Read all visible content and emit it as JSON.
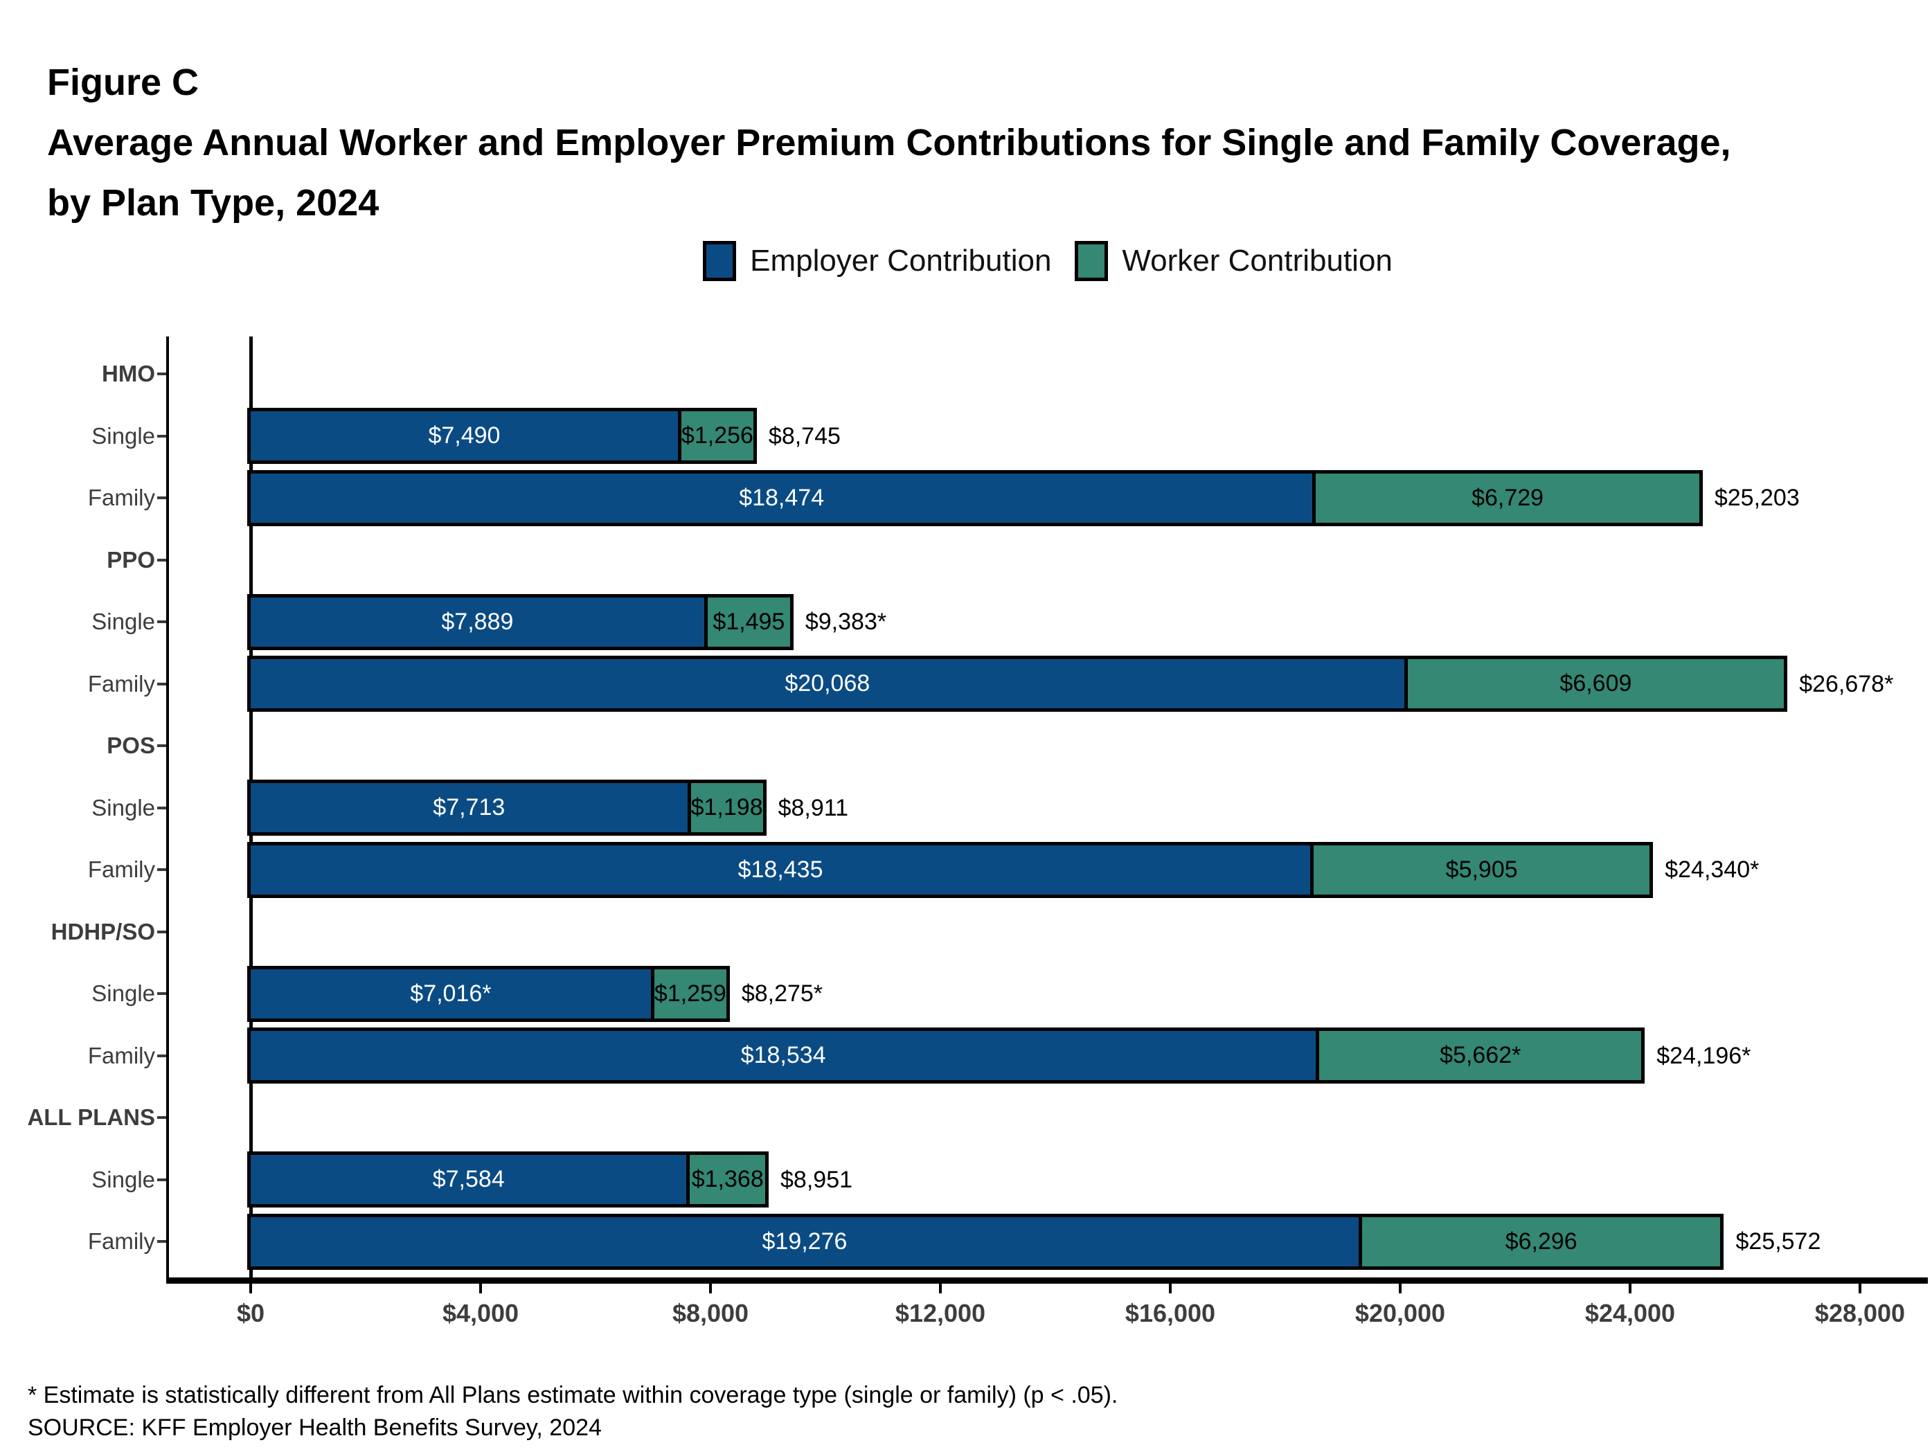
{
  "figure": {
    "label": "Figure C",
    "title_line1": "Average Annual Worker and Employer Premium Contributions for Single and Family Coverage,",
    "title_line2": "by Plan Type, 2024"
  },
  "legend": [
    {
      "label": "Employer Contribution",
      "color": "#0B4B84"
    },
    {
      "label": "Worker Contribution",
      "color": "#348874"
    }
  ],
  "footnotes": [
    "* Estimate is statistically different from All Plans estimate within coverage type (single or family) (p < .05).",
    "SOURCE: KFF Employer Health Benefits Survey, 2024"
  ],
  "chart_data": {
    "type": "bar",
    "orientation": "horizontal",
    "stacked": true,
    "title": "Average Annual Worker and Employer Premium Contributions for Single and Family Coverage, by Plan Type, 2024",
    "series_names": [
      "Employer Contribution",
      "Worker Contribution"
    ],
    "colors": {
      "employer": "#0B4B84",
      "worker": "#348874"
    },
    "x_axis": {
      "min": 0,
      "max": 28000,
      "tick_values": [
        0,
        4000,
        8000,
        12000,
        16000,
        20000,
        24000,
        28000
      ],
      "tick_labels": [
        "$0",
        "$4,000",
        "$8,000",
        "$12,000",
        "$16,000",
        "$20,000",
        "$24,000",
        "$28,000"
      ]
    },
    "legend_position": "top",
    "grid": false,
    "groups": [
      {
        "label": "HMO",
        "rows": [
          {
            "label": "Single",
            "employer": 7490,
            "worker": 1256,
            "employer_label": "$7,490",
            "worker_label": "$1,256",
            "total_label": "$8,745"
          },
          {
            "label": "Family",
            "employer": 18474,
            "worker": 6729,
            "employer_label": "$18,474",
            "worker_label": "$6,729",
            "total_label": "$25,203"
          }
        ]
      },
      {
        "label": "PPO",
        "rows": [
          {
            "label": "Single",
            "employer": 7889,
            "worker": 1495,
            "employer_label": "$7,889",
            "worker_label": "$1,495",
            "total_label": "$9,383*"
          },
          {
            "label": "Family",
            "employer": 20068,
            "worker": 6609,
            "employer_label": "$20,068",
            "worker_label": "$6,609",
            "total_label": "$26,678*"
          }
        ]
      },
      {
        "label": "POS",
        "rows": [
          {
            "label": "Single",
            "employer": 7713,
            "worker": 1198,
            "employer_label": "$7,713",
            "worker_label": "$1,198",
            "total_label": "$8,911"
          },
          {
            "label": "Family",
            "employer": 18435,
            "worker": 5905,
            "employer_label": "$18,435",
            "worker_label": "$5,905",
            "total_label": "$24,340*"
          }
        ]
      },
      {
        "label": "HDHP/SO",
        "rows": [
          {
            "label": "Single",
            "employer": 7016,
            "worker": 1259,
            "employer_label": "$7,016*",
            "worker_label": "$1,259",
            "total_label": "$8,275*"
          },
          {
            "label": "Family",
            "employer": 18534,
            "worker": 5662,
            "employer_label": "$18,534",
            "worker_label": "$5,662*",
            "total_label": "$24,196*"
          }
        ]
      },
      {
        "label": "ALL PLANS",
        "rows": [
          {
            "label": "Single",
            "employer": 7584,
            "worker": 1368,
            "employer_label": "$7,584",
            "worker_label": "$1,368",
            "total_label": "$8,951"
          },
          {
            "label": "Family",
            "employer": 19276,
            "worker": 6296,
            "employer_label": "$19,276",
            "worker_label": "$6,296",
            "total_label": "$25,572"
          }
        ]
      }
    ]
  }
}
